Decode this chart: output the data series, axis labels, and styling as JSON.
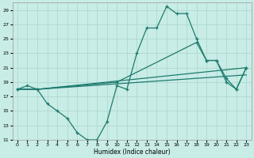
{
  "xlabel": "Humidex (Indice chaleur)",
  "background_color": "#c8ece6",
  "grid_color": "#b0d8d0",
  "line_color": "#1e7a6e",
  "xlim": [
    -0.5,
    23.5
  ],
  "ylim": [
    11,
    30
  ],
  "xticks": [
    0,
    1,
    2,
    3,
    4,
    5,
    6,
    7,
    8,
    9,
    10,
    11,
    12,
    13,
    14,
    15,
    16,
    17,
    18,
    19,
    20,
    21,
    22,
    23
  ],
  "yticks": [
    11,
    13,
    15,
    17,
    19,
    21,
    23,
    25,
    27,
    29
  ],
  "line1_x": [
    0,
    1,
    2,
    3,
    4,
    5,
    6,
    7,
    8,
    9,
    10,
    11,
    12,
    13,
    14,
    15,
    16,
    17,
    18,
    19,
    20,
    21,
    22,
    23
  ],
  "line1_y": [
    18,
    18.5,
    18,
    16,
    15,
    14,
    12,
    11,
    11,
    13.5,
    18.5,
    18,
    23,
    26.5,
    26.5,
    29.5,
    28.5,
    28.5,
    25,
    22,
    22,
    19,
    18,
    21
  ],
  "line2_x": [
    0,
    2,
    10,
    18,
    19,
    20,
    21,
    22,
    23
  ],
  "line2_y": [
    18,
    18,
    19,
    24.5,
    22,
    22,
    19.5,
    18,
    21
  ],
  "line3_x": [
    0,
    2,
    23
  ],
  "line3_y": [
    18,
    18,
    21
  ],
  "line4_x": [
    0,
    2,
    23
  ],
  "line4_y": [
    18,
    18,
    20
  ]
}
